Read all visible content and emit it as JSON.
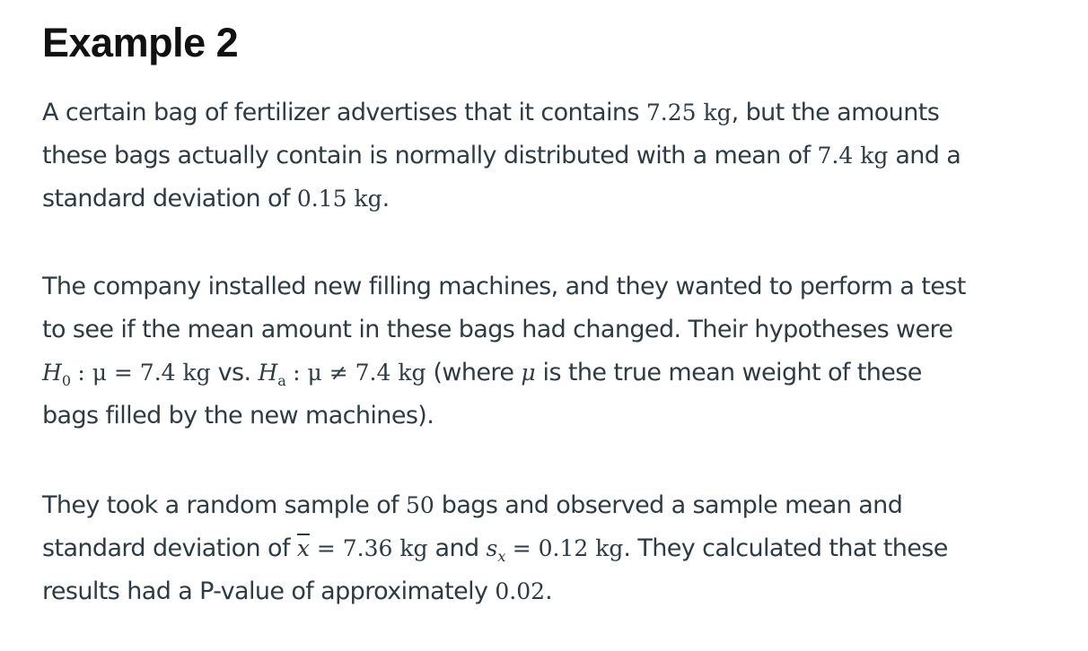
{
  "title": "Example 2",
  "para1": {
    "l1_a": "A certain bag of fertilizer advertises that it contains ",
    "l1_m": "7.25 kg",
    "l1_b": ", but the amounts",
    "l2_a": "these bags actually contain is normally distributed with a mean of ",
    "l2_m": "7.4 kg",
    "l2_b": " and a",
    "l3_a": "standard deviation of ",
    "l3_m": "0.15 kg",
    "l3_b": "."
  },
  "para2": {
    "l1": "The company installed new filling machines, and they wanted to perform a test",
    "l2": "to see if the mean amount in these bags had changed. Their hypotheses were",
    "l3_h": "H",
    "l3_h_sub": "0",
    "l3_eq": " : μ = 7.4 kg",
    "l3_vs": " vs. ",
    "l3_ha": "H",
    "l3_ha_sub": "a",
    "l3_neq": " : μ ≠ 7.4 kg",
    "l3_rest_a": " (where ",
    "l3_mu": "μ",
    "l3_rest_b": " is the true mean weight of these",
    "l4": "bags filled by the new machines)."
  },
  "para3": {
    "l1_a": "They took a random sample of ",
    "l1_m": "50",
    "l1_b": " bags and observed a sample mean and",
    "l2_a": "standard deviation of ",
    "l2_x": "x",
    "l2_eq1": " = 7.36 kg",
    "l2_and": " and ",
    "l2_s": "s",
    "l2_s_sub": "x",
    "l2_eq2": " = 0.12 kg",
    "l2_b": ". They calculated that these",
    "l3_a": "results had a P-value of approximately ",
    "l3_m": "0.02",
    "l3_b": "."
  }
}
